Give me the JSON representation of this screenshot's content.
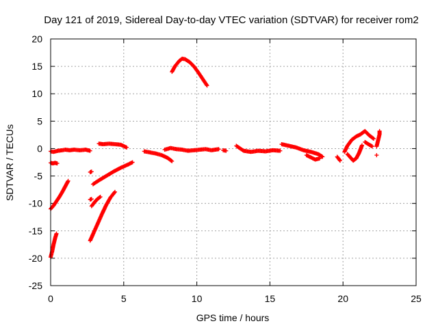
{
  "chart_data": {
    "type": "scatter",
    "title": "Day 121 of 2019, Sidereal Day-to-day VTEC variation (SDTVAR) for receiver rom2",
    "xlabel": "GPS time / hours",
    "ylabel": "SDTVAR / TECUs",
    "xlim": [
      0,
      25
    ],
    "ylim": [
      -25,
      20
    ],
    "xticks": [
      0,
      5,
      10,
      15,
      20,
      25
    ],
    "yticks": [
      -25,
      -20,
      -15,
      -10,
      -5,
      0,
      5,
      10,
      15,
      20
    ],
    "grid": true,
    "marker": "+",
    "color": "#ff0000",
    "segments": [
      {
        "x": [
          0.0,
          0.2,
          0.5,
          0.8,
          1.0,
          1.3,
          1.6,
          2.0,
          2.4,
          2.7
        ],
        "y": [
          -0.5,
          -0.6,
          -0.4,
          -0.3,
          -0.2,
          -0.3,
          -0.2,
          -0.3,
          -0.2,
          -0.4
        ]
      },
      {
        "x": [
          0.0,
          0.15,
          0.3,
          0.45
        ],
        "y": [
          -2.6,
          -2.7,
          -2.6,
          -2.7
        ]
      },
      {
        "x": [
          0.0,
          0.2,
          0.4,
          0.6,
          0.8,
          1.0,
          1.2
        ],
        "y": [
          -11.0,
          -10.4,
          -9.6,
          -8.8,
          -7.9,
          -6.9,
          -5.9
        ]
      },
      {
        "x": [
          0.0,
          0.1,
          0.2,
          0.3,
          0.4
        ],
        "y": [
          -19.8,
          -18.8,
          -17.5,
          -16.4,
          -15.5
        ]
      },
      {
        "x": [
          2.7,
          2.9,
          3.2,
          3.5,
          3.8,
          4.1,
          4.4
        ],
        "y": [
          -16.8,
          -15.6,
          -13.8,
          -12.0,
          -10.3,
          -8.9,
          -7.9
        ]
      },
      {
        "x": [
          2.8,
          3.0,
          3.2,
          3.4
        ],
        "y": [
          -10.5,
          -9.8,
          -9.2,
          -8.8
        ]
      },
      {
        "x": [
          2.7,
          2.8
        ],
        "y": [
          -9.3,
          -9.2
        ]
      },
      {
        "x": [
          2.7,
          2.8
        ],
        "y": [
          -4.3,
          -4.2
        ]
      },
      {
        "x": [
          2.9,
          3.3,
          3.8,
          4.3,
          4.8,
          5.3,
          5.6
        ],
        "y": [
          -6.5,
          -5.8,
          -5.0,
          -4.2,
          -3.5,
          -2.9,
          -2.5
        ]
      },
      {
        "x": [
          3.3,
          3.6,
          4.0,
          4.4,
          4.8,
          5.2
        ],
        "y": [
          0.9,
          0.8,
          0.9,
          0.8,
          0.7,
          0.2
        ]
      },
      {
        "x": [
          6.4,
          6.8,
          7.2,
          7.6,
          8.0,
          8.3
        ],
        "y": [
          -0.5,
          -0.7,
          -0.9,
          -1.2,
          -1.7,
          -2.3
        ]
      },
      {
        "x": [
          7.8,
          8.2,
          8.6,
          9.0,
          9.4,
          9.8,
          10.2,
          10.6,
          11.0,
          11.5
        ],
        "y": [
          -0.2,
          0.1,
          -0.1,
          -0.2,
          -0.4,
          -0.3,
          -0.2,
          -0.1,
          -0.3,
          -0.1
        ]
      },
      {
        "x": [
          8.3,
          8.5,
          8.8,
          9.0,
          9.2,
          9.5,
          9.8,
          10.1,
          10.4,
          10.7
        ],
        "y": [
          14.0,
          15.0,
          16.0,
          16.4,
          16.3,
          15.8,
          15.0,
          13.9,
          12.7,
          11.5
        ]
      },
      {
        "x": [
          12.7,
          13.2,
          13.7,
          14.2,
          14.7,
          15.2,
          15.7
        ],
        "y": [
          0.5,
          -0.4,
          -0.6,
          -0.4,
          -0.5,
          -0.3,
          -0.4
        ]
      },
      {
        "x": [
          15.8,
          16.3,
          16.8,
          17.3,
          17.8,
          18.3,
          18.6
        ],
        "y": [
          0.8,
          0.5,
          0.2,
          -0.3,
          -0.6,
          -1.0,
          -1.5
        ]
      },
      {
        "x": [
          17.5,
          17.8,
          18.1,
          18.4
        ],
        "y": [
          -1.2,
          -1.6,
          -2.0,
          -1.8
        ]
      },
      {
        "x": [
          19.6,
          19.8
        ],
        "y": [
          -1.5,
          -2.2
        ]
      },
      {
        "x": [
          20.1,
          20.3,
          20.6,
          20.9,
          21.2,
          21.5,
          21.8,
          22.1
        ],
        "y": [
          -0.6,
          0.5,
          1.6,
          2.2,
          2.6,
          3.2,
          2.4,
          1.8
        ]
      },
      {
        "x": [
          20.3,
          20.5,
          20.7,
          20.9,
          21.1,
          21.3
        ],
        "y": [
          -1.0,
          -1.6,
          -2.2,
          -1.8,
          -0.8,
          0.6
        ]
      },
      {
        "x": [
          21.5,
          21.8,
          22.0
        ],
        "y": [
          1.2,
          0.7,
          0.4
        ]
      },
      {
        "x": [
          22.3,
          22.4,
          22.5,
          22.5
        ],
        "y": [
          0.4,
          1.5,
          2.6,
          3.2
        ]
      },
      {
        "x": [
          22.3
        ],
        "y": [
          -1.2
        ]
      },
      {
        "x": [
          11.8,
          12.0
        ],
        "y": [
          -0.3,
          -0.4
        ]
      }
    ]
  }
}
